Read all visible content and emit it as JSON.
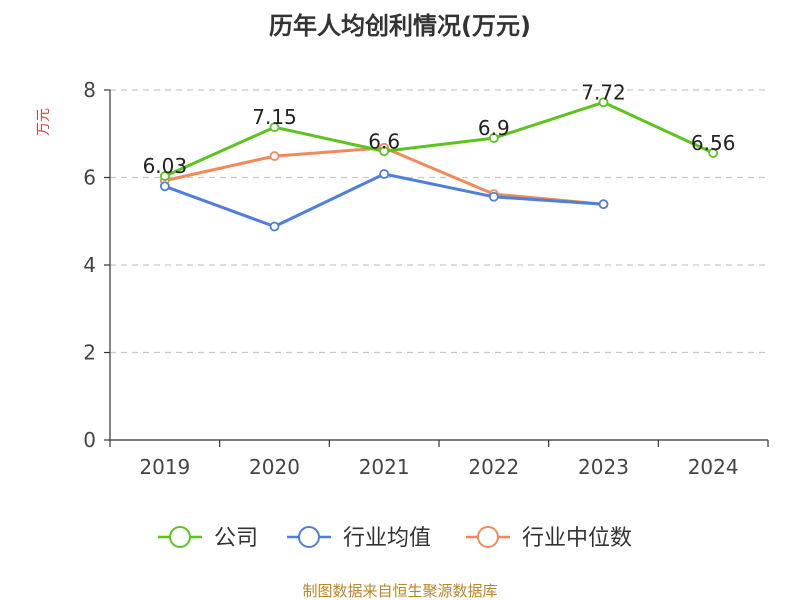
{
  "chart_data": {
    "type": "line",
    "title": "历年人均创利情况(万元)",
    "ylabel": "万元",
    "xlabel": "",
    "ylim": [
      0,
      8
    ],
    "yticks": [
      0,
      2,
      4,
      6,
      8
    ],
    "categories": [
      "2019",
      "2020",
      "2021",
      "2022",
      "2023",
      "2024"
    ],
    "series": [
      {
        "name": "公司",
        "color": "#5cc31f",
        "values": [
          6.03,
          7.15,
          6.6,
          6.9,
          7.72,
          6.56
        ],
        "labels": [
          "6.03",
          "7.15",
          "6.6",
          "6.9",
          "7.72",
          "6.56"
        ]
      },
      {
        "name": "行业均值",
        "color": "#4f7fd8",
        "values": [
          5.8,
          4.88,
          6.08,
          5.56,
          5.39,
          null
        ]
      },
      {
        "name": "行业中位数",
        "color": "#f2895a",
        "values": [
          5.93,
          6.49,
          6.68,
          5.62,
          5.39,
          null
        ]
      }
    ],
    "legend_position": "bottom",
    "grid": "horizontal-dashed"
  },
  "source": "制图数据来自恒生聚源数据库"
}
